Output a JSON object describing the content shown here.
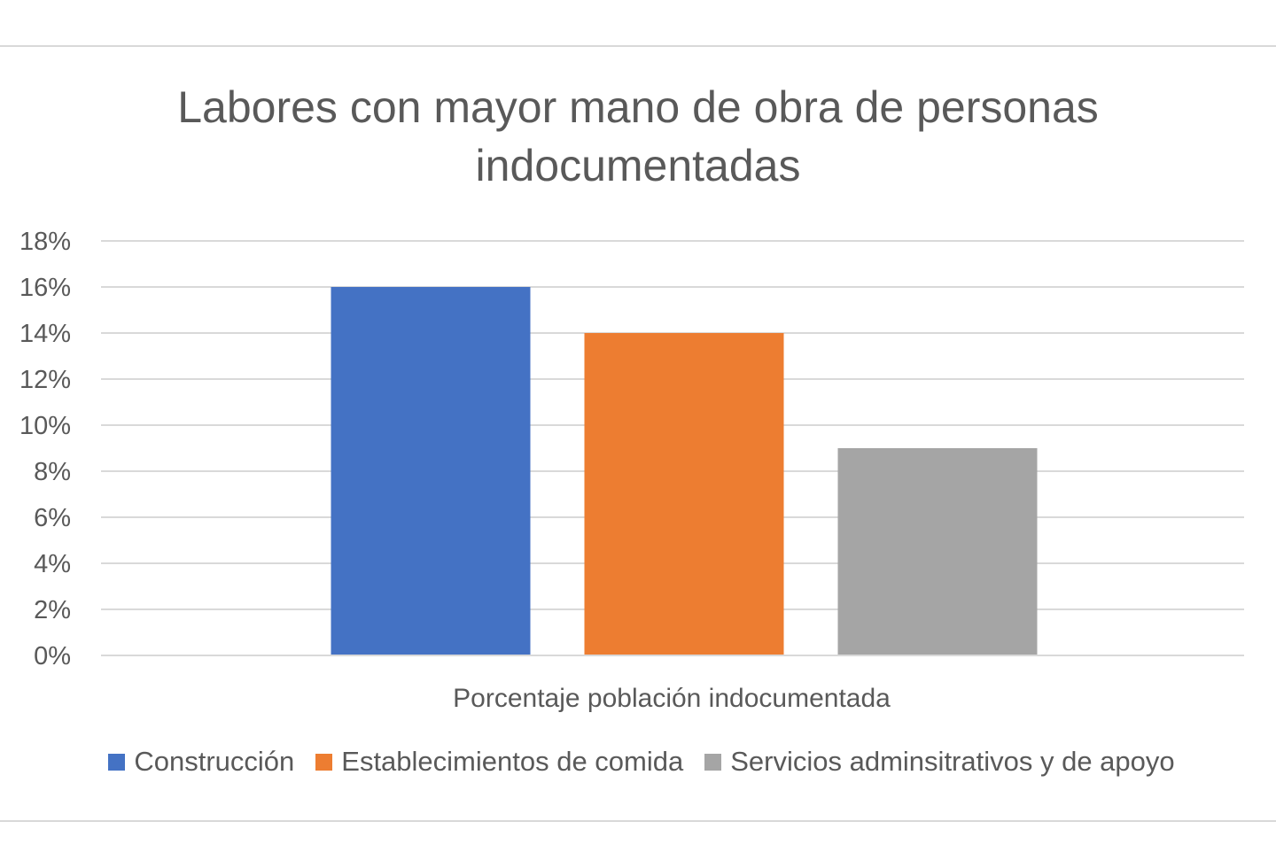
{
  "chart_data": {
    "type": "bar",
    "title": "Labores con mayor mano de obra de personas indocumentadas",
    "title_lines": [
      "Labores con mayor mano de obra de personas",
      "indocumentadas"
    ],
    "categories": [
      "Porcentaje población indocumentada"
    ],
    "xlabel": "",
    "ylabel": "",
    "ylim": [
      0,
      18
    ],
    "yticks": [
      0,
      2,
      4,
      6,
      8,
      10,
      12,
      14,
      16,
      18
    ],
    "ytick_labels": [
      "0%",
      "2%",
      "4%",
      "6%",
      "8%",
      "10%",
      "12%",
      "14%",
      "16%",
      "18%"
    ],
    "grid": true,
    "legend_position": "bottom",
    "series": [
      {
        "name": "Construcción",
        "values": [
          16
        ],
        "color": "#4472c4"
      },
      {
        "name": "Establecimientos de comida",
        "values": [
          14
        ],
        "color": "#ed7d31"
      },
      {
        "name": "Servicios adminsitrativos y de apoyo",
        "values": [
          9
        ],
        "color": "#a5a5a5"
      }
    ]
  }
}
